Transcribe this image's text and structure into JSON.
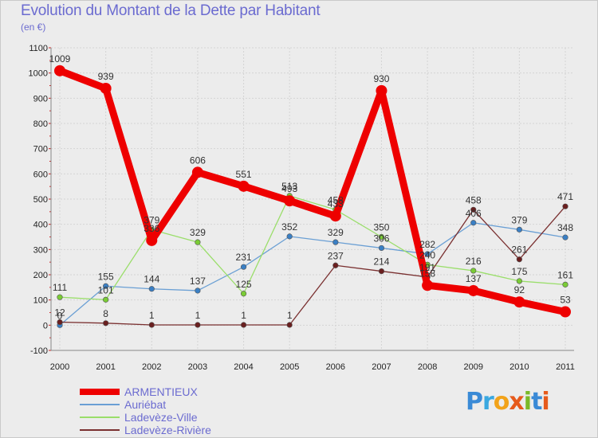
{
  "title": "Evolution du Montant de la Dette par Habitant",
  "subtitle": "(en €)",
  "logo": {
    "text": "Proxiti",
    "letter_colors": [
      "#3a8ad6",
      "#3aa8e0",
      "#f2a31a",
      "#e65a1c",
      "#7ab928",
      "#3a8ad6",
      "#e65a1c"
    ]
  },
  "chart_data": {
    "type": "line",
    "title": "Evolution du Montant de la Dette par Habitant",
    "subtitle": "(en €)",
    "x": [
      "2000",
      "2001",
      "2002",
      "2003",
      "2004",
      "2005",
      "2006",
      "2007",
      "2008",
      "2009",
      "2010",
      "2011"
    ],
    "ylim": [
      -100,
      1100
    ],
    "yticks": [
      -100,
      0,
      100,
      200,
      300,
      400,
      500,
      600,
      700,
      800,
      900,
      1000,
      1100
    ],
    "grid": true,
    "legend": "bottom-left",
    "series": [
      {
        "name": "ARMENTIEUX",
        "color": "#ee0000",
        "marker_color": "#ee0000",
        "bold": true,
        "values": [
          1009,
          939,
          336,
          606,
          551,
          493,
          433,
          930,
          158,
          137,
          92,
          53
        ],
        "labels": [
          "1009",
          "939",
          "336",
          "606",
          "551",
          "493",
          "433",
          "930",
          "158",
          "137",
          "92",
          "53"
        ]
      },
      {
        "name": "Auriébat",
        "color": "#6a9fd4",
        "marker_color": "#3a7fc4",
        "bold": false,
        "values": [
          0,
          155,
          144,
          137,
          231,
          352,
          329,
          306,
          282,
          406,
          379,
          348
        ],
        "labels": [
          "0",
          "155",
          "144",
          "137",
          "231",
          "352",
          "329",
          "306",
          "282",
          "406",
          "379",
          "348"
        ]
      },
      {
        "name": "Ladevèze-Ville",
        "color": "#9ade6a",
        "marker_color": "#7acc35",
        "bold": false,
        "values": [
          111,
          101,
          379,
          329,
          125,
          513,
          458,
          350,
          240,
          216,
          175,
          161
        ],
        "labels": [
          "111",
          "101",
          "379",
          "329",
          "125",
          "513",
          "458",
          "350",
          "240",
          "216",
          "175",
          "161"
        ]
      },
      {
        "name": "Ladevèze-Rivière",
        "color": "#7a3030",
        "marker_color": "#6a1f1f",
        "bold": false,
        "values": [
          12,
          8,
          1,
          1,
          1,
          1,
          237,
          214,
          191,
          458,
          261,
          471
        ],
        "labels": [
          "12",
          "8",
          "1",
          "1",
          "1",
          "1",
          "237",
          "214",
          "191",
          "458",
          "261",
          "471"
        ]
      }
    ]
  }
}
